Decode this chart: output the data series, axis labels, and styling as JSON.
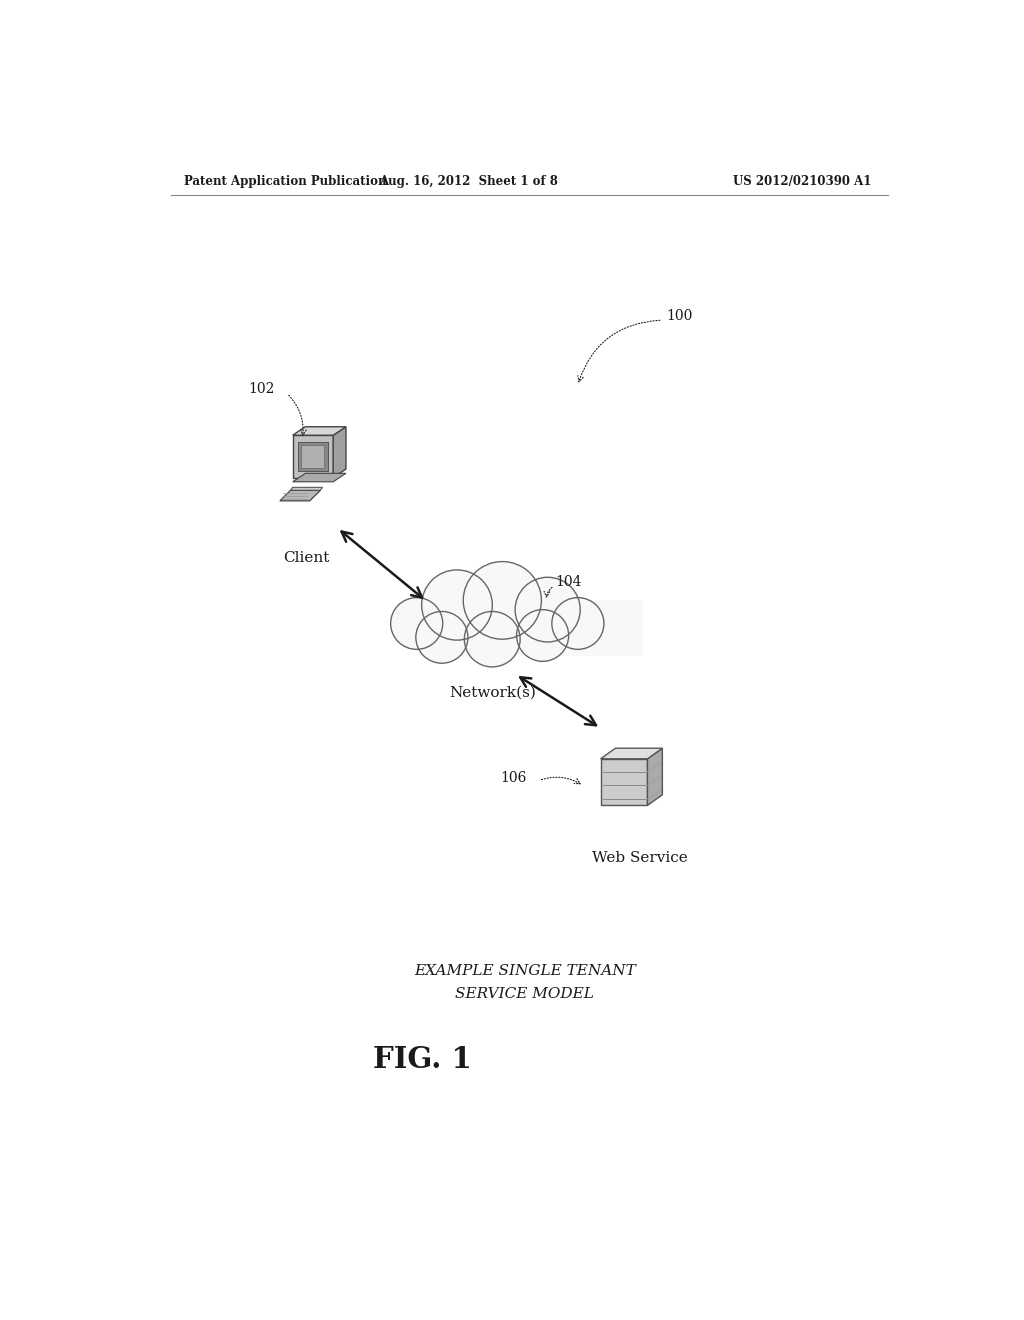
{
  "title_header_left": "Patent Application Publication",
  "title_header_mid": "Aug. 16, 2012  Sheet 1 of 8",
  "title_header_right": "US 2012/0210390 A1",
  "fig_label": "FIG. 1",
  "caption_line1": "EXAMPLE SINGLE TENANT",
  "caption_line2": "SERVICE MODEL",
  "label_100": "100",
  "label_102": "102",
  "label_104": "104",
  "label_106": "106",
  "label_client": "Client",
  "label_network": "Network(s)",
  "label_webservice": "Web Service",
  "bg_color": "#ffffff",
  "text_color": "#1a1a1a"
}
